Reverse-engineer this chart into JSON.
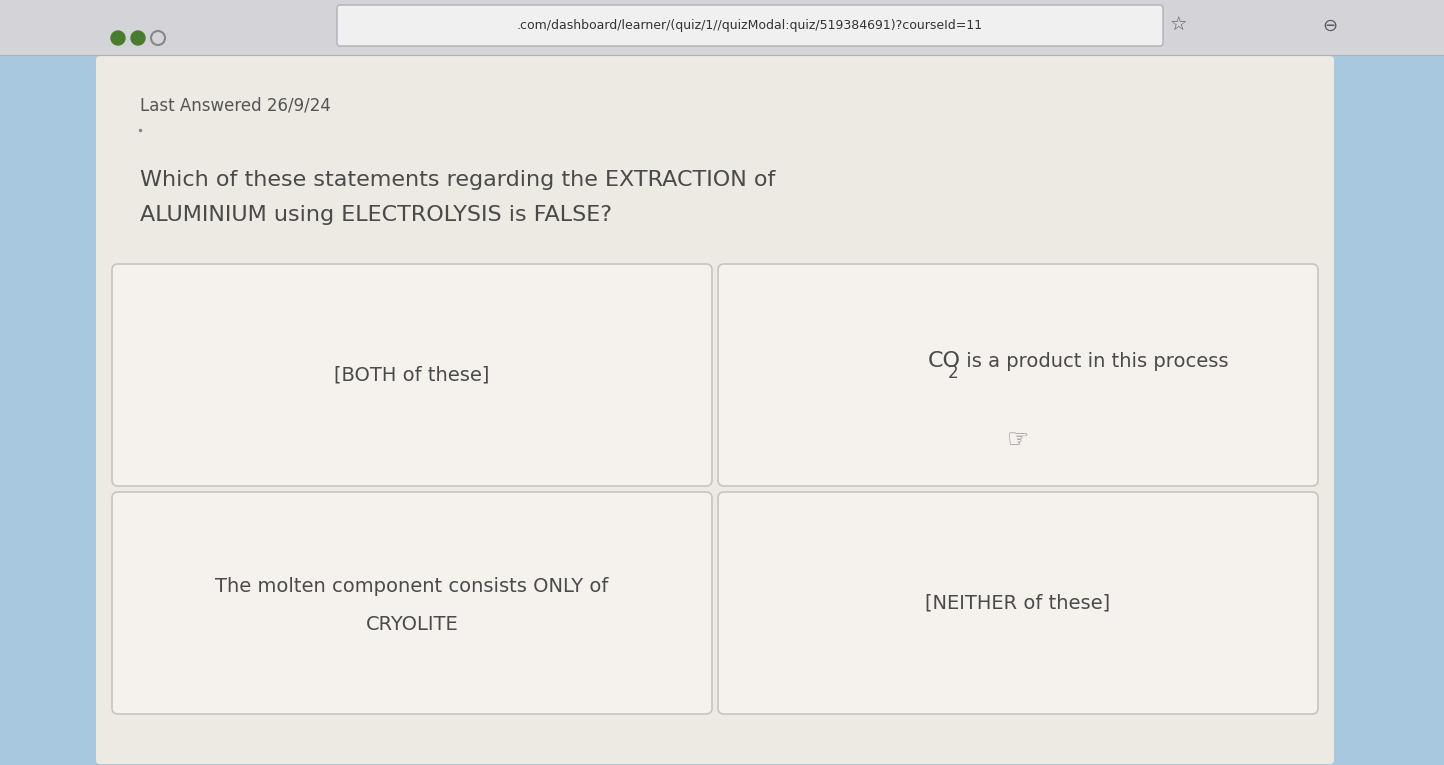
{
  "bg_color": "#a8c8e0",
  "browser_bar_color": "#d4d4d8",
  "url_text": ".com/dashboard/learner/(quiz/1//quizModal:quiz/519384691)?courseId=11",
  "panel_color": "#ede9e3",
  "last_answered": "Last Answered 26/9/24",
  "question_line1": "Which of these statements regarding the EXTRACTION of",
  "question_line2": "ALUMINIUM using ELECTROLYSIS is FALSE?",
  "card_bg": "#f5f2ee",
  "card_border": "#c8c4be",
  "dot1_color": "#4a7c2f",
  "dot2_color": "#4a7c2f",
  "text_color": "#4a4a4a",
  "meta_color": "#555555",
  "url_color": "#333333",
  "option1": "[BOTH of these]",
  "option2_part1": "CO",
  "option2_sub": "2",
  "option2_part2": " is a product in this process",
  "option3_line1": "The molten component consists ONLY of",
  "option3_line2": "CRYOLITE",
  "option4": "[NEITHER of these]",
  "question_fontsize": 16,
  "option_fontsize": 14,
  "meta_fontsize": 12
}
